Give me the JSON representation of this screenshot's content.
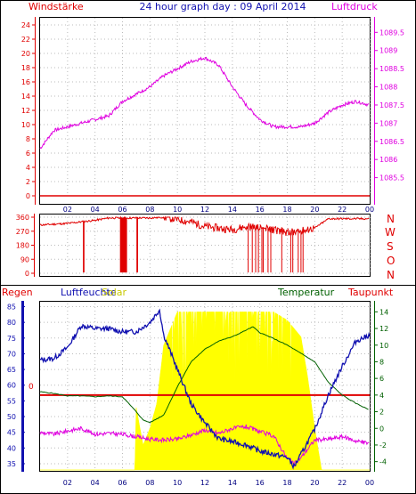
{
  "title": "24 hour graph day : 09 April 2014",
  "top_left_label": "Windstärke",
  "top_right_label": "Luftdruck",
  "bottom_labels": {
    "regen": "Regen",
    "luftfeuchte": "Luftfeuchte",
    "solar": "Solar",
    "temperatur": "Temperatur",
    "taupunkt": "Taupunkt"
  },
  "colors": {
    "wind": "#e00000",
    "pressure": "#e000e0",
    "humidity": "#1010b0",
    "solar": "#ffff00",
    "temperature": "#006000",
    "dewpoint": "#e000e0",
    "rain": "#e00000",
    "axis": "#000000"
  },
  "x_ticks": [
    "02",
    "04",
    "06",
    "08",
    "10",
    "12",
    "14",
    "16",
    "18",
    "20",
    "22",
    "00"
  ],
  "direction_labels": [
    "N",
    "W",
    "S",
    "O",
    "N"
  ],
  "rain_marker": "0",
  "chart_data": [
    {
      "type": "line",
      "title": "Windstärke / Luftdruck",
      "x_label": "",
      "y_left": {
        "label": "Windstärke",
        "ticks": [
          0,
          2,
          4,
          6,
          8,
          10,
          12,
          14,
          16,
          18,
          20,
          22,
          24
        ],
        "range": [
          0,
          25
        ]
      },
      "y_right": {
        "label": "Luftdruck",
        "ticks": [
          "1085.5",
          "1086",
          "1086.5",
          "1087",
          "1087.5",
          "1088",
          "1088.5",
          "1089",
          "1089.5"
        ],
        "range": [
          1085.0,
          1089.9
        ]
      },
      "series": [
        {
          "name": "Windstärke",
          "axis": "left",
          "x": [
            0,
            24
          ],
          "values": [
            0,
            0
          ]
        },
        {
          "name": "Luftdruck",
          "axis": "right",
          "x": [
            0,
            1,
            2,
            3,
            4,
            5,
            6,
            7,
            8,
            9,
            10,
            11,
            12,
            13,
            14,
            15,
            16,
            17,
            18,
            19,
            20,
            21,
            22,
            23,
            24
          ],
          "values": [
            1086.3,
            1086.8,
            1086.9,
            1087.0,
            1087.1,
            1087.2,
            1087.6,
            1087.8,
            1088.0,
            1088.3,
            1088.5,
            1088.7,
            1088.8,
            1088.6,
            1088.0,
            1087.5,
            1087.1,
            1086.9,
            1086.9,
            1086.9,
            1087.0,
            1087.3,
            1087.5,
            1087.6,
            1087.5
          ]
        }
      ]
    },
    {
      "type": "line",
      "title": "Windrichtung",
      "y_left": {
        "ticks": [
          0,
          90,
          180,
          270,
          360
        ],
        "range": [
          0,
          360
        ]
      },
      "series": [
        {
          "name": "Windrichtung",
          "x": [
            0,
            2,
            3,
            4,
            5,
            6,
            7,
            8,
            9,
            10,
            11,
            12,
            13,
            14,
            15,
            16,
            17,
            18,
            19,
            20,
            21,
            22,
            23,
            24
          ],
          "values": [
            310,
            320,
            330,
            340,
            355,
            355,
            355,
            355,
            360,
            345,
            330,
            300,
            290,
            280,
            300,
            290,
            280,
            260,
            270,
            290,
            350,
            350,
            350,
            350
          ]
        }
      ]
    },
    {
      "type": "line",
      "title": "Luftfeuchte / Temperatur / Taupunkt / Solar",
      "y_left": {
        "label": "Luftfeuchte",
        "ticks": [
          35,
          40,
          45,
          50,
          55,
          60,
          65,
          70,
          75,
          80,
          85
        ],
        "range": [
          33,
          86
        ]
      },
      "y_right": {
        "label": "Temperatur",
        "ticks": [
          -4,
          -2,
          0,
          2,
          4,
          6,
          8,
          10,
          12,
          14
        ],
        "range": [
          -5,
          15
        ]
      },
      "series": [
        {
          "name": "Luftfeuchte",
          "axis": "left",
          "x": [
            0,
            1,
            2,
            3,
            4,
            5,
            6,
            7,
            8,
            8.7,
            9,
            10,
            11,
            12,
            13,
            14,
            15,
            16,
            17,
            18,
            18.5,
            19,
            20,
            21,
            22,
            23,
            24
          ],
          "values": [
            68,
            68.5,
            72,
            79,
            78,
            78,
            77,
            77,
            80,
            84,
            76,
            65,
            54,
            48,
            43,
            42,
            41,
            39,
            38,
            37,
            34,
            38,
            46,
            57,
            66,
            74,
            76
          ]
        },
        {
          "name": "Temperatur",
          "axis": "right",
          "x": [
            0,
            1,
            2,
            3,
            4,
            5,
            6,
            7,
            7.5,
            8,
            9,
            10,
            11,
            12,
            13,
            14,
            15,
            15.5,
            16,
            17,
            18,
            19,
            20,
            21,
            22,
            23,
            24
          ],
          "values": [
            4.4,
            4.2,
            3.9,
            3.9,
            3.8,
            3.9,
            3.8,
            2.0,
            1.0,
            0.7,
            1.6,
            5.0,
            8.0,
            9.5,
            10.5,
            11.0,
            11.8,
            12.2,
            11.5,
            10.8,
            10.0,
            9.0,
            8.0,
            5.5,
            4.0,
            3.0,
            2.2
          ]
        },
        {
          "name": "Taupunkt",
          "axis": "right",
          "x": [
            0,
            1,
            2,
            3,
            4,
            5,
            6,
            7,
            8,
            9,
            10,
            11,
            12,
            13,
            14,
            15,
            16,
            17,
            18,
            18.5,
            19,
            20,
            21,
            22,
            23,
            24
          ],
          "values": [
            -0.5,
            -0.7,
            -0.3,
            0.0,
            -0.7,
            -0.6,
            -0.7,
            -1.0,
            -1.3,
            -1.4,
            -1.3,
            -0.8,
            -0.2,
            -0.6,
            0.0,
            0.2,
            -0.4,
            -0.9,
            -3.6,
            -4.3,
            -3.5,
            -1.4,
            -1.3,
            -1.0,
            -1.5,
            -1.8
          ]
        },
        {
          "name": "Solar",
          "x": [
            0,
            6.9,
            7,
            7.5,
            8,
            8.5,
            9,
            10,
            11,
            12,
            13,
            14,
            15,
            16,
            17,
            18,
            18.5,
            19,
            19.5,
            20,
            20.5,
            24
          ],
          "values": [
            -5,
            -5,
            2.5,
            -2,
            0,
            3,
            10,
            14,
            14,
            14,
            14,
            14,
            14,
            14,
            14,
            13,
            12,
            11,
            6,
            0,
            -5,
            -5
          ]
        },
        {
          "name": "Regen",
          "axis": "right",
          "x": [
            0,
            24
          ],
          "values": [
            4.0,
            4.0
          ]
        }
      ]
    }
  ]
}
